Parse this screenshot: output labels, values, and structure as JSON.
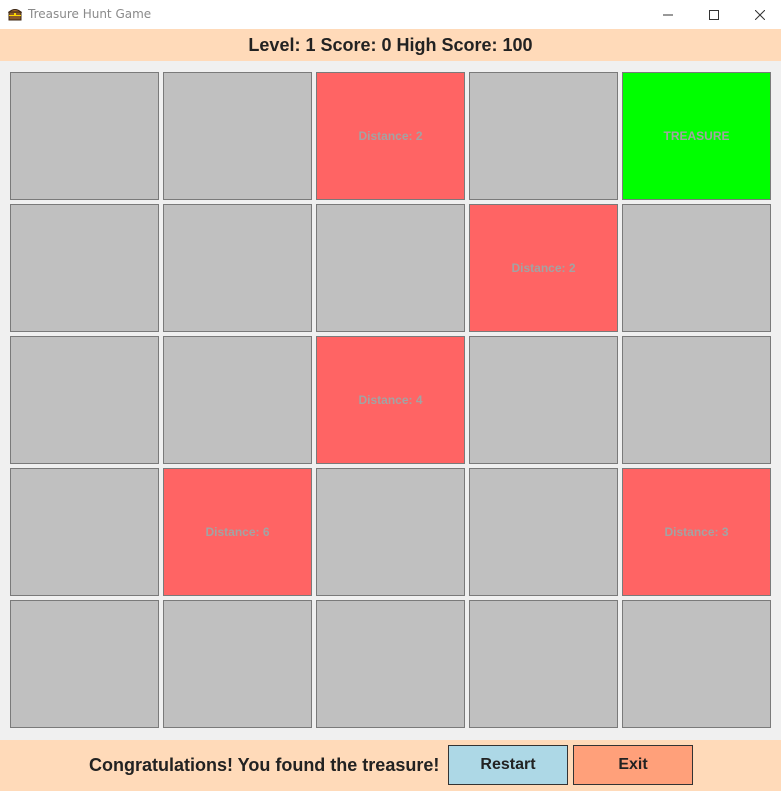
{
  "window": {
    "title": "Treasure Hunt Game",
    "icon": "treasure-chest-icon"
  },
  "status": {
    "level": "Level: 1",
    "score": "Score: 0",
    "high_score": "High Score: 100"
  },
  "grid": {
    "rows": [
      [
        {
          "state": "hidden",
          "label": ""
        },
        {
          "state": "hidden",
          "label": ""
        },
        {
          "state": "miss",
          "label": "Distance: 2"
        },
        {
          "state": "hidden",
          "label": ""
        },
        {
          "state": "treasure",
          "label": "TREASURE"
        }
      ],
      [
        {
          "state": "hidden",
          "label": ""
        },
        {
          "state": "hidden",
          "label": ""
        },
        {
          "state": "hidden",
          "label": ""
        },
        {
          "state": "miss",
          "label": "Distance: 2"
        },
        {
          "state": "hidden",
          "label": ""
        }
      ],
      [
        {
          "state": "hidden",
          "label": ""
        },
        {
          "state": "hidden",
          "label": ""
        },
        {
          "state": "miss",
          "label": "Distance: 4"
        },
        {
          "state": "hidden",
          "label": ""
        },
        {
          "state": "hidden",
          "label": ""
        }
      ],
      [
        {
          "state": "hidden",
          "label": ""
        },
        {
          "state": "miss",
          "label": "Distance: 6"
        },
        {
          "state": "hidden",
          "label": ""
        },
        {
          "state": "hidden",
          "label": ""
        },
        {
          "state": "miss",
          "label": "Distance: 3"
        }
      ],
      [
        {
          "state": "hidden",
          "label": ""
        },
        {
          "state": "hidden",
          "label": ""
        },
        {
          "state": "hidden",
          "label": ""
        },
        {
          "state": "hidden",
          "label": ""
        },
        {
          "state": "hidden",
          "label": ""
        }
      ]
    ]
  },
  "footer": {
    "message": "Congratulations! You found the treasure!",
    "restart_label": "Restart",
    "exit_label": "Exit"
  },
  "colors": {
    "hidden": "#c0c0c0",
    "miss": "#ff6464",
    "treasure": "#00ff00",
    "bar_background": "#ffdab9",
    "restart_button": "#add8e6",
    "exit_button": "#ffa07a"
  }
}
